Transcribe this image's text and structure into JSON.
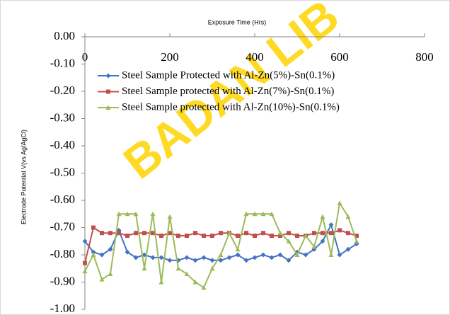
{
  "chart_data": {
    "type": "line",
    "x_label": "Exposure Time (Hrs)",
    "y_label": "Electrode Potential V(vs Ag/AgCl)",
    "watermark": "BADAN LIB",
    "x": [
      0,
      20,
      40,
      60,
      80,
      100,
      120,
      140,
      160,
      180,
      200,
      220,
      240,
      260,
      280,
      300,
      320,
      340,
      360,
      380,
      400,
      420,
      440,
      460,
      480,
      500,
      520,
      540,
      560,
      580,
      600,
      620,
      640
    ],
    "xlim": [
      0,
      800
    ],
    "xticks": [
      0,
      200,
      400,
      600,
      800
    ],
    "ylim": [
      -1,
      0
    ],
    "yticks": [
      {
        "value": 0,
        "label": "0.00"
      },
      {
        "value": -0.1,
        "label": "-0.10"
      },
      {
        "value": -0.2,
        "label": "-0.20"
      },
      {
        "value": -0.3,
        "label": "-0.30"
      },
      {
        "value": -0.4,
        "label": "-0.40"
      },
      {
        "value": -0.5,
        "label": "-0.50"
      },
      {
        "value": -0.6,
        "label": "-0.60"
      },
      {
        "value": -0.7,
        "label": "-0.70"
      },
      {
        "value": -0.8,
        "label": "-0.80"
      },
      {
        "value": -0.9,
        "label": "-0.90"
      },
      {
        "value": -1,
        "label": "-1.00"
      }
    ],
    "grid": false,
    "series": [
      {
        "name": "Steel Sample Protected with Al-Zn(5%)-Sn(0.1%)",
        "color": "#4472c4",
        "marker": "diamond",
        "values": [
          -0.75,
          -0.79,
          -0.8,
          -0.78,
          -0.71,
          -0.79,
          -0.81,
          -0.8,
          -0.81,
          -0.81,
          -0.82,
          -0.82,
          -0.81,
          -0.82,
          -0.81,
          -0.82,
          -0.82,
          -0.81,
          -0.8,
          -0.82,
          -0.81,
          -0.8,
          -0.81,
          -0.8,
          -0.82,
          -0.79,
          -0.8,
          -0.78,
          -0.75,
          -0.69,
          -0.8,
          -0.78,
          -0.76
        ]
      },
      {
        "name": "Steel Sample protected with Al-Zn(7%)-Sn(0.1%)",
        "color": "#c0504d",
        "marker": "square",
        "values": [
          -0.83,
          -0.7,
          -0.72,
          -0.72,
          -0.72,
          -0.73,
          -0.72,
          -0.72,
          -0.72,
          -0.73,
          -0.72,
          -0.73,
          -0.73,
          -0.72,
          -0.73,
          -0.73,
          -0.72,
          -0.72,
          -0.73,
          -0.72,
          -0.73,
          -0.72,
          -0.73,
          -0.73,
          -0.72,
          -0.73,
          -0.73,
          -0.72,
          -0.72,
          -0.72,
          -0.71,
          -0.72,
          -0.73
        ]
      },
      {
        "name": "Steel Sample protected with Al-Zn(10%)-Sn(0.1%)",
        "color": "#9bbb59",
        "marker": "triangle",
        "values": [
          -0.86,
          -0.8,
          -0.89,
          -0.87,
          -0.65,
          -0.65,
          -0.65,
          -0.85,
          -0.65,
          -0.9,
          -0.66,
          -0.85,
          -0.87,
          -0.9,
          -0.92,
          -0.85,
          -0.8,
          -0.72,
          -0.78,
          -0.65,
          -0.65,
          -0.65,
          -0.65,
          -0.72,
          -0.75,
          -0.8,
          -0.73,
          -0.77,
          -0.66,
          -0.8,
          -0.61,
          -0.66,
          -0.75
        ]
      }
    ]
  }
}
